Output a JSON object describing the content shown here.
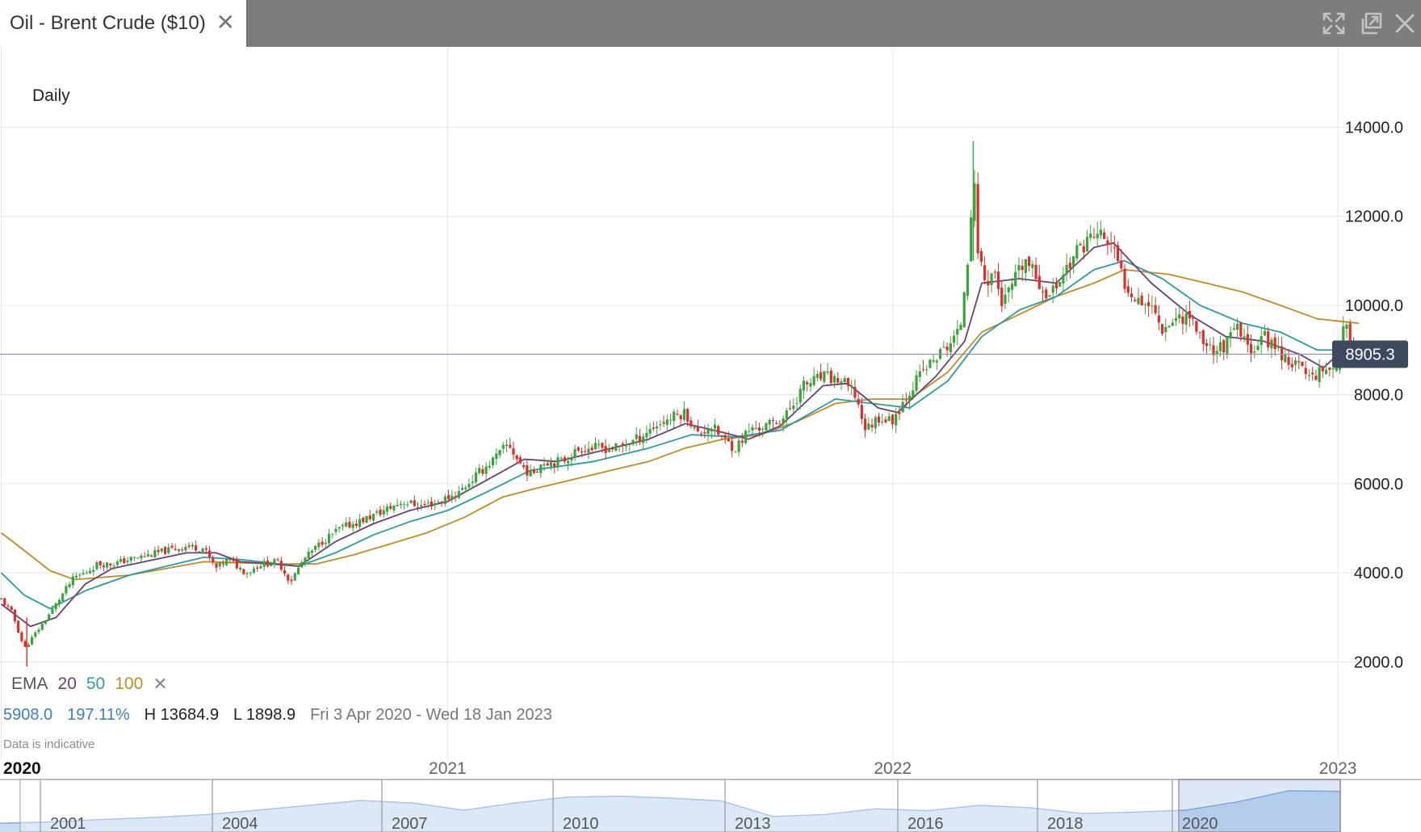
{
  "window": {
    "tab_title": "Oil - Brent Crude ($10)",
    "tab_close_glyph": "✕",
    "controls": [
      "expand-icon",
      "popout-icon",
      "close-icon"
    ]
  },
  "period_label": "Daily",
  "indicators": {
    "name": "EMA",
    "periods": [
      "20",
      "50",
      "100"
    ],
    "remove_glyph": "✕"
  },
  "stats": {
    "change": "5908.0",
    "change_pct": "197.11%",
    "high": "H 13684.9",
    "low": "L 1898.9",
    "range": "Fri 3 Apr 2020 - Wed 18 Jan 2023"
  },
  "disclaimer": "Data is indicative",
  "colors": {
    "up": "#3ca23c",
    "down": "#d9302b",
    "ema20": "#6b3f7a",
    "ema50": "#2b9ba6",
    "ema100": "#c48a24",
    "price_tag": "#3d4a5e",
    "navigator_fill": "#c9dcf1",
    "navigator_line": "#7aa7dc"
  },
  "chart_data": {
    "type": "candlestick",
    "title": "Oil - Brent Crude ($10)",
    "interval": "Daily",
    "ylim": [
      0,
      15800
    ],
    "y_ticks": [
      "2000.0",
      "4000.0",
      "6000.0",
      "8000.0",
      "10000.0",
      "12000.0",
      "14000.0"
    ],
    "y_tick_values": [
      2000,
      4000,
      6000,
      8000,
      10000,
      12000,
      14000
    ],
    "x_ticks": [
      "2020",
      "2021",
      "2022",
      "2023"
    ],
    "x_tick_dates": [
      "2020-01-01",
      "2021-01-01",
      "2022-01-01",
      "2023-01-01"
    ],
    "x_domain": [
      "2019-12-31",
      "2023-02-09"
    ],
    "current_price": 8905.3,
    "current_price_label": "8905.3",
    "data_range": [
      "2020-04-03",
      "2023-01-18"
    ],
    "high": 13684.9,
    "low": 1898.9,
    "close_path": [
      [
        "2020-01-01",
        3400
      ],
      [
        "2020-01-10",
        3100
      ],
      [
        "2020-01-20",
        2300
      ],
      [
        "2020-01-28",
        2600
      ],
      [
        "2020-02-05",
        2900
      ],
      [
        "2020-02-15",
        3300
      ],
      [
        "2020-02-22",
        3600
      ],
      [
        "2020-03-01",
        3900
      ],
      [
        "2020-03-10",
        4000
      ],
      [
        "2020-03-20",
        4200
      ],
      [
        "2020-04-01",
        4200
      ],
      [
        "2020-04-15",
        4300
      ],
      [
        "2020-05-01",
        4400
      ],
      [
        "2020-05-15",
        4500
      ],
      [
        "2020-06-01",
        4600
      ],
      [
        "2020-06-15",
        4550
      ],
      [
        "2020-06-25",
        4100
      ],
      [
        "2020-07-05",
        4300
      ],
      [
        "2020-07-20",
        4000
      ],
      [
        "2020-08-01",
        4200
      ],
      [
        "2020-08-15",
        4250
      ],
      [
        "2020-08-25",
        3800
      ],
      [
        "2020-09-05",
        4300
      ],
      [
        "2020-09-20",
        4700
      ],
      [
        "2020-10-05",
        5000
      ],
      [
        "2020-10-25",
        5200
      ],
      [
        "2020-11-10",
        5400
      ],
      [
        "2020-11-25",
        5600
      ],
      [
        "2020-12-10",
        5500
      ],
      [
        "2020-12-25",
        5600
      ],
      [
        "2021-01-10",
        5800
      ],
      [
        "2021-01-25",
        6200
      ],
      [
        "2021-02-10",
        6600
      ],
      [
        "2021-02-20",
        6900
      ],
      [
        "2021-02-28",
        6500
      ],
      [
        "2021-03-10",
        6200
      ],
      [
        "2021-03-20",
        6500
      ],
      [
        "2021-04-05",
        6500
      ],
      [
        "2021-04-20",
        6800
      ],
      [
        "2021-05-05",
        6800
      ],
      [
        "2021-05-20",
        6800
      ],
      [
        "2021-06-05",
        7000
      ],
      [
        "2021-06-20",
        7300
      ],
      [
        "2021-07-05",
        7500
      ],
      [
        "2021-07-15",
        7600
      ],
      [
        "2021-07-25",
        7100
      ],
      [
        "2021-08-05",
        7300
      ],
      [
        "2021-08-15",
        7000
      ],
      [
        "2021-08-25",
        6800
      ],
      [
        "2021-09-05",
        7200
      ],
      [
        "2021-09-20",
        7300
      ],
      [
        "2021-10-05",
        7500
      ],
      [
        "2021-10-20",
        8200
      ],
      [
        "2021-11-05",
        8400
      ],
      [
        "2021-11-20",
        8300
      ],
      [
        "2021-12-01",
        8000
      ],
      [
        "2021-12-10",
        7200
      ],
      [
        "2021-12-20",
        7500
      ],
      [
        "2021-12-31",
        7400
      ],
      [
        "2022-01-15",
        8100
      ],
      [
        "2022-01-25",
        8500
      ],
      [
        "2022-02-05",
        8800
      ],
      [
        "2022-02-15",
        9100
      ],
      [
        "2022-02-25",
        9400
      ],
      [
        "2022-03-01",
        10500
      ],
      [
        "2022-03-05",
        11500
      ],
      [
        "2022-03-08",
        13000
      ],
      [
        "2022-03-12",
        11200
      ],
      [
        "2022-03-18",
        10500
      ],
      [
        "2022-03-25",
        10800
      ],
      [
        "2022-04-01",
        10000
      ],
      [
        "2022-04-10",
        10500
      ],
      [
        "2022-04-20",
        11000
      ],
      [
        "2022-05-01",
        10500
      ],
      [
        "2022-05-10",
        10200
      ],
      [
        "2022-05-20",
        10700
      ],
      [
        "2022-06-01",
        11200
      ],
      [
        "2022-06-10",
        11500
      ],
      [
        "2022-06-20",
        11600
      ],
      [
        "2022-06-30",
        11300
      ],
      [
        "2022-07-10",
        10500
      ],
      [
        "2022-07-20",
        10200
      ],
      [
        "2022-08-01",
        10000
      ],
      [
        "2022-08-10",
        9500
      ],
      [
        "2022-08-20",
        9700
      ],
      [
        "2022-09-01",
        9800
      ],
      [
        "2022-09-10",
        9300
      ],
      [
        "2022-09-20",
        9000
      ],
      [
        "2022-10-01",
        9100
      ],
      [
        "2022-10-10",
        9500
      ],
      [
        "2022-10-20",
        9000
      ],
      [
        "2022-11-01",
        9300
      ],
      [
        "2022-11-10",
        9100
      ],
      [
        "2022-11-20",
        8800
      ],
      [
        "2022-12-01",
        8600
      ],
      [
        "2022-12-10",
        8400
      ],
      [
        "2022-12-20",
        8600
      ],
      [
        "2022-12-30",
        8600
      ],
      [
        "2023-01-06",
        9500
      ],
      [
        "2023-01-12",
        9250
      ],
      [
        "2023-01-18",
        8905
      ]
    ],
    "ema20_path": [
      [
        "2020-01-01",
        3300
      ],
      [
        "2020-01-25",
        2800
      ],
      [
        "2020-02-15",
        3000
      ],
      [
        "2020-03-10",
        3750
      ],
      [
        "2020-04-01",
        4100
      ],
      [
        "2020-06-01",
        4450
      ],
      [
        "2020-06-25",
        4450
      ],
      [
        "2020-07-15",
        4250
      ],
      [
        "2020-08-10",
        4200
      ],
      [
        "2020-09-01",
        4150
      ],
      [
        "2020-10-01",
        4700
      ],
      [
        "2020-11-01",
        5100
      ],
      [
        "2020-12-01",
        5400
      ],
      [
        "2021-01-01",
        5600
      ],
      [
        "2021-02-10",
        6200
      ],
      [
        "2021-03-05",
        6550
      ],
      [
        "2021-04-01",
        6500
      ],
      [
        "2021-05-01",
        6700
      ],
      [
        "2021-06-15",
        7000
      ],
      [
        "2021-07-15",
        7350
      ],
      [
        "2021-08-15",
        7150
      ],
      [
        "2021-09-05",
        7000
      ],
      [
        "2021-10-01",
        7300
      ],
      [
        "2021-11-05",
        8200
      ],
      [
        "2021-11-25",
        8250
      ],
      [
        "2021-12-20",
        7700
      ],
      [
        "2022-01-05",
        7600
      ],
      [
        "2022-02-05",
        8400
      ],
      [
        "2022-03-01",
        9200
      ],
      [
        "2022-03-15",
        10500
      ],
      [
        "2022-04-15",
        10600
      ],
      [
        "2022-05-15",
        10500
      ],
      [
        "2022-06-15",
        11300
      ],
      [
        "2022-07-01",
        11400
      ],
      [
        "2022-08-01",
        10500
      ],
      [
        "2022-09-01",
        9800
      ],
      [
        "2022-10-01",
        9300
      ],
      [
        "2022-11-01",
        9200
      ],
      [
        "2022-12-01",
        8900
      ],
      [
        "2022-12-20",
        8600
      ],
      [
        "2023-01-05",
        9000
      ],
      [
        "2023-01-18",
        9100
      ]
    ],
    "ema50_path": [
      [
        "2020-01-01",
        4000
      ],
      [
        "2020-01-20",
        3500
      ],
      [
        "2020-02-10",
        3200
      ],
      [
        "2020-03-10",
        3600
      ],
      [
        "2020-04-15",
        3950
      ],
      [
        "2020-06-15",
        4350
      ],
      [
        "2020-07-15",
        4300
      ],
      [
        "2020-09-01",
        4150
      ],
      [
        "2020-10-01",
        4450
      ],
      [
        "2020-11-01",
        4850
      ],
      [
        "2020-12-01",
        5150
      ],
      [
        "2021-01-01",
        5400
      ],
      [
        "2021-02-01",
        5800
      ],
      [
        "2021-03-10",
        6300
      ],
      [
        "2021-05-01",
        6500
      ],
      [
        "2021-06-15",
        6800
      ],
      [
        "2021-07-20",
        7100
      ],
      [
        "2021-08-25",
        7050
      ],
      [
        "2021-10-01",
        7200
      ],
      [
        "2021-11-15",
        7900
      ],
      [
        "2021-12-15",
        7800
      ],
      [
        "2022-01-15",
        7700
      ],
      [
        "2022-02-15",
        8300
      ],
      [
        "2022-03-15",
        9300
      ],
      [
        "2022-04-15",
        9900
      ],
      [
        "2022-05-15",
        10200
      ],
      [
        "2022-06-15",
        10800
      ],
      [
        "2022-07-10",
        11000
      ],
      [
        "2022-08-10",
        10600
      ],
      [
        "2022-09-10",
        10000
      ],
      [
        "2022-10-15",
        9600
      ],
      [
        "2022-11-15",
        9400
      ],
      [
        "2022-12-15",
        9000
      ],
      [
        "2023-01-05",
        9000
      ],
      [
        "2023-01-18",
        9200
      ]
    ],
    "ema100_path": [
      [
        "2020-01-01",
        4900
      ],
      [
        "2020-01-20",
        4500
      ],
      [
        "2020-02-10",
        4050
      ],
      [
        "2020-03-01",
        3850
      ],
      [
        "2020-04-15",
        3950
      ],
      [
        "2020-06-15",
        4250
      ],
      [
        "2020-08-15",
        4200
      ],
      [
        "2020-09-15",
        4200
      ],
      [
        "2020-10-15",
        4400
      ],
      [
        "2020-11-15",
        4650
      ],
      [
        "2020-12-15",
        4900
      ],
      [
        "2021-01-15",
        5250
      ],
      [
        "2021-02-15",
        5700
      ],
      [
        "2021-03-15",
        5900
      ],
      [
        "2021-04-15",
        6100
      ],
      [
        "2021-05-15",
        6300
      ],
      [
        "2021-06-15",
        6500
      ],
      [
        "2021-07-15",
        6800
      ],
      [
        "2021-08-15",
        7000
      ],
      [
        "2021-09-15",
        7100
      ],
      [
        "2021-10-15",
        7400
      ],
      [
        "2021-11-15",
        7800
      ],
      [
        "2021-12-15",
        7900
      ],
      [
        "2022-01-15",
        7900
      ],
      [
        "2022-02-15",
        8500
      ],
      [
        "2022-03-15",
        9400
      ],
      [
        "2022-04-15",
        9800
      ],
      [
        "2022-05-15",
        10200
      ],
      [
        "2022-06-15",
        10500
      ],
      [
        "2022-07-10",
        10800
      ],
      [
        "2022-08-15",
        10700
      ],
      [
        "2022-09-15",
        10500
      ],
      [
        "2022-10-15",
        10300
      ],
      [
        "2022-11-15",
        10000
      ],
      [
        "2022-12-15",
        9700
      ],
      [
        "2023-01-18",
        9600
      ]
    ]
  },
  "navigator": {
    "year_labels": [
      "2001",
      "2004",
      "2007",
      "2010",
      "2013",
      "2016",
      "2018",
      "2020"
    ],
    "profile": [
      1800,
      2100,
      2600,
      3000,
      3600,
      4500,
      5500,
      6500,
      6000,
      4500,
      6000,
      7200,
      7400,
      7000,
      6400,
      3200,
      3600,
      4800,
      4400,
      5500,
      5000,
      3800,
      4100,
      4500,
      6200,
      8500,
      8400
    ]
  }
}
